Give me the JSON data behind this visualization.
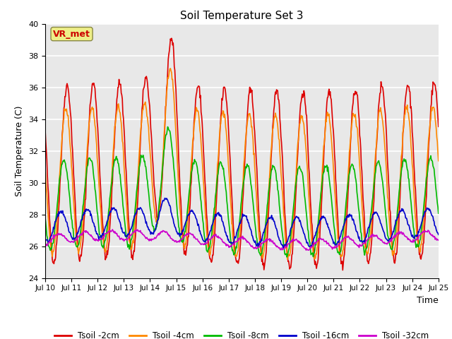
{
  "title": "Soil Temperature Set 3",
  "xlabel": "Time",
  "ylabel": "Soil Temperature (C)",
  "ylim": [
    24,
    40
  ],
  "yticks": [
    24,
    26,
    28,
    30,
    32,
    34,
    36,
    38,
    40
  ],
  "colors": {
    "Tsoil -2cm": "#dd0000",
    "Tsoil -4cm": "#ff8800",
    "Tsoil -8cm": "#00bb00",
    "Tsoil -16cm": "#0000cc",
    "Tsoil -32cm": "#cc00cc"
  },
  "annotation_text": "VR_met",
  "annotation_color": "#cc0000",
  "annotation_bg": "#eeee88",
  "background_color": "#e8e8e8",
  "n_days": 15,
  "start_day": 10,
  "points_per_day": 48,
  "figsize": [
    6.4,
    4.8
  ],
  "dpi": 100
}
